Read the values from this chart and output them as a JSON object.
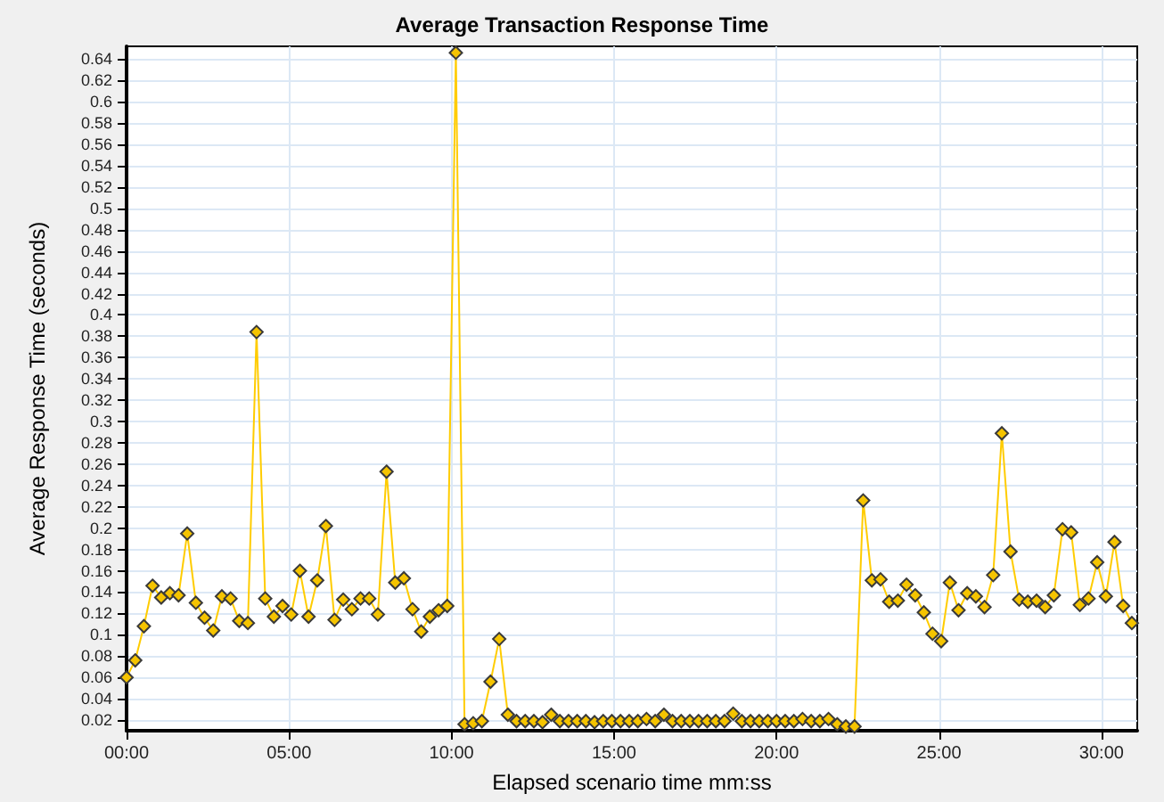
{
  "chart_data": {
    "type": "line",
    "title": "Average Transaction Response Time",
    "xlabel": "Elapsed scenario time mm:ss",
    "ylabel": "Average Response Time (seconds)",
    "xlim": [
      0,
      1866
    ],
    "xticks": [
      {
        "value": 0,
        "label": "00:00"
      },
      {
        "value": 300,
        "label": "05:00"
      },
      {
        "value": 600,
        "label": "10:00"
      },
      {
        "value": 900,
        "label": "15:00"
      },
      {
        "value": 1200,
        "label": "20:00"
      },
      {
        "value": 1500,
        "label": "25:00"
      },
      {
        "value": 1800,
        "label": "30:00"
      }
    ],
    "ylim": [
      0.01,
      0.652
    ],
    "yticks": [
      0.02,
      0.04,
      0.06,
      0.08,
      0.1,
      0.12,
      0.14,
      0.16,
      0.18,
      0.2,
      0.22,
      0.24,
      0.26,
      0.28,
      0.3,
      0.32,
      0.34,
      0.36,
      0.38,
      0.4,
      0.42,
      0.44,
      0.46,
      0.48,
      0.5,
      0.52,
      0.54,
      0.56,
      0.58,
      0.6,
      0.62,
      0.64
    ],
    "grid": true,
    "marker": "diamond",
    "line_style": "solid",
    "x": [
      0,
      16,
      32,
      48,
      64,
      80,
      96,
      112,
      128,
      144,
      160,
      176,
      192,
      208,
      224,
      240,
      256,
      272,
      288,
      304,
      320,
      336,
      352,
      368,
      384,
      400,
      416,
      432,
      448,
      464,
      480,
      496,
      512,
      528,
      544,
      560,
      576,
      592,
      608,
      624,
      640,
      656,
      672,
      688,
      704,
      720,
      736,
      752,
      768,
      784,
      800,
      816,
      832,
      848,
      864,
      880,
      896,
      912,
      928,
      944,
      960,
      976,
      992,
      1008,
      1024,
      1040,
      1056,
      1072,
      1088,
      1104,
      1120,
      1136,
      1152,
      1168,
      1184,
      1200,
      1216,
      1232,
      1248,
      1264,
      1280,
      1296,
      1312,
      1328,
      1344,
      1360,
      1376,
      1392,
      1408,
      1424,
      1440,
      1456,
      1472,
      1488,
      1504,
      1520,
      1536,
      1552,
      1568,
      1584,
      1600,
      1616,
      1632,
      1648,
      1664,
      1680,
      1696,
      1712,
      1728,
      1744,
      1760,
      1776,
      1792,
      1808,
      1824,
      1840,
      1856
    ],
    "series": [
      {
        "color": "#ffcc00",
        "values": [
          0.06,
          0.076,
          0.108,
          0.146,
          0.135,
          0.139,
          0.137,
          0.195,
          0.13,
          0.116,
          0.104,
          0.136,
          0.134,
          0.113,
          0.111,
          0.384,
          0.134,
          0.117,
          0.127,
          0.119,
          0.16,
          0.117,
          0.151,
          0.202,
          0.114,
          0.133,
          0.124,
          0.134,
          0.134,
          0.119,
          0.253,
          0.149,
          0.153,
          0.124,
          0.103,
          0.117,
          0.123,
          0.127,
          0.646,
          0.016,
          0.017,
          0.019,
          0.056,
          0.096,
          0.025,
          0.019,
          0.019,
          0.019,
          0.018,
          0.025,
          0.019,
          0.019,
          0.019,
          0.019,
          0.018,
          0.019,
          0.019,
          0.019,
          0.019,
          0.019,
          0.021,
          0.019,
          0.025,
          0.019,
          0.019,
          0.019,
          0.019,
          0.019,
          0.019,
          0.019,
          0.026,
          0.019,
          0.019,
          0.019,
          0.019,
          0.019,
          0.019,
          0.019,
          0.021,
          0.019,
          0.019,
          0.021,
          0.016,
          0.014,
          0.014,
          0.226,
          0.151,
          0.152,
          0.131,
          0.132,
          0.147,
          0.137,
          0.121,
          0.101,
          0.094,
          0.149,
          0.123,
          0.139,
          0.136,
          0.126,
          0.156,
          0.289,
          0.178,
          0.133,
          0.131,
          0.132,
          0.126,
          0.137,
          0.199,
          0.196,
          0.128,
          0.134,
          0.168,
          0.136,
          0.187,
          0.127,
          0.111
        ]
      }
    ]
  }
}
